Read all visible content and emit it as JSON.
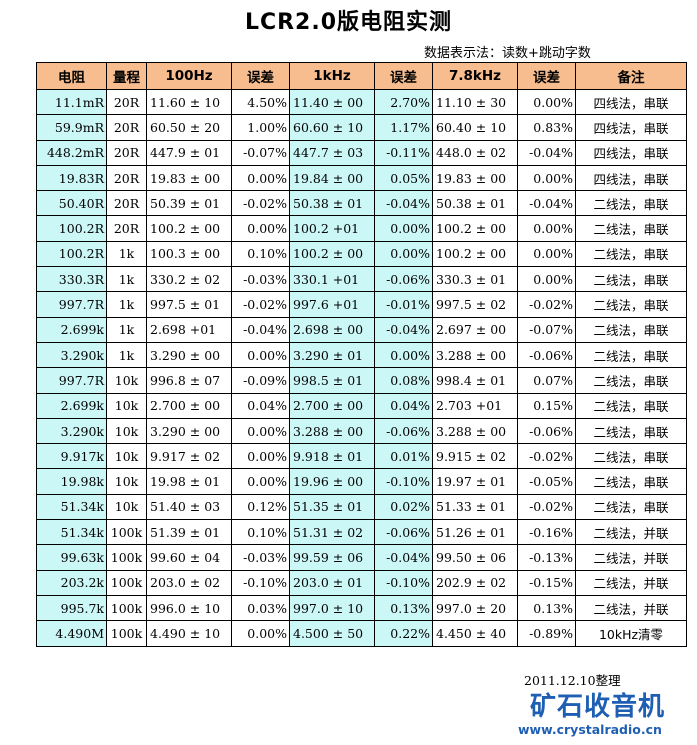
{
  "title": "LCR2.0版电阻实测",
  "subtitle": "数据表示法：读数+跳动字数",
  "headers": [
    "电阻",
    "量程",
    "100Hz",
    "误差",
    "1kHz",
    "误差",
    "7.8kHz",
    "误差",
    "备注"
  ],
  "rows": [
    [
      "11.1mR",
      "20R",
      "11.60 ± 10",
      "4.50%",
      "11.40 ± 00",
      "2.70%",
      "11.10 ± 30",
      "0.00%",
      "四线法，串联"
    ],
    [
      "59.9mR",
      "20R",
      "60.50 ± 20",
      "1.00%",
      "60.60 ± 10",
      "1.17%",
      "60.40 ± 10",
      "0.83%",
      "四线法，串联"
    ],
    [
      "448.2mR",
      "20R",
      "447.9 ± 01",
      "-0.07%",
      "447.7 ± 03",
      "-0.11%",
      "448.0 ± 02",
      "-0.04%",
      "四线法，串联"
    ],
    [
      "19.83R",
      "20R",
      "19.83 ± 00",
      "0.00%",
      "19.84 ± 00",
      "0.05%",
      "19.83 ± 00",
      "0.00%",
      "四线法，串联"
    ],
    [
      "50.40R",
      "20R",
      "50.39 ± 01",
      "-0.02%",
      "50.38 ± 01",
      "-0.04%",
      "50.38 ± 01",
      "-0.04%",
      "二线法，串联"
    ],
    [
      "100.2R",
      "20R",
      "100.2 ± 00",
      "0.00%",
      "100.2 +01",
      "0.00%",
      "100.2 ± 00",
      "0.00%",
      "二线法，串联"
    ],
    [
      "100.2R",
      "1k",
      "100.3 ± 00",
      "0.10%",
      "100.2 ± 00",
      "0.00%",
      "100.2 ± 00",
      "0.00%",
      "二线法，串联"
    ],
    [
      "330.3R",
      "1k",
      "330.2 ± 02",
      "-0.03%",
      "330.1 +01",
      "-0.06%",
      "330.3 ± 01",
      "0.00%",
      "二线法，串联"
    ],
    [
      "997.7R",
      "1k",
      "997.5 ± 01",
      "-0.02%",
      "997.6 +01",
      "-0.01%",
      "997.5 ± 02",
      "-0.02%",
      "二线法，串联"
    ],
    [
      "2.699k",
      "1k",
      "2.698 +01",
      "-0.04%",
      "2.698 ± 00",
      "-0.04%",
      "2.697 ± 00",
      "-0.07%",
      "二线法，串联"
    ],
    [
      "3.290k",
      "1k",
      "3.290 ± 00",
      "0.00%",
      "3.290 ± 01",
      "0.00%",
      "3.288 ± 00",
      "-0.06%",
      "二线法，串联"
    ],
    [
      "997.7R",
      "10k",
      "996.8 ± 07",
      "-0.09%",
      "998.5 ± 01",
      "0.08%",
      "998.4 ± 01",
      "0.07%",
      "二线法，串联"
    ],
    [
      "2.699k",
      "10k",
      "2.700 ± 00",
      "0.04%",
      "2.700 ± 00",
      "0.04%",
      "2.703 +01",
      "0.15%",
      "二线法，串联"
    ],
    [
      "3.290k",
      "10k",
      "3.290 ± 00",
      "0.00%",
      "3.288 ± 00",
      "-0.06%",
      "3.288 ± 00",
      "-0.06%",
      "二线法，串联"
    ],
    [
      "9.917k",
      "10k",
      "9.917 ± 02",
      "0.00%",
      "9.918 ± 01",
      "0.01%",
      "9.915 ± 02",
      "-0.02%",
      "二线法，串联"
    ],
    [
      "19.98k",
      "10k",
      "19.98 ± 01",
      "0.00%",
      "19.96 ± 00",
      "-0.10%",
      "19.97 ± 01",
      "-0.05%",
      "二线法，串联"
    ],
    [
      "51.34k",
      "10k",
      "51.40 ± 03",
      "0.12%",
      "51.35 ± 01",
      "0.02%",
      "51.33 ± 01",
      "-0.02%",
      "二线法，串联"
    ],
    [
      "51.34k",
      "100k",
      "51.39 ± 01",
      "0.10%",
      "51.31 ± 02",
      "-0.06%",
      "51.26 ± 01",
      "-0.16%",
      "二线法，并联"
    ],
    [
      "99.63k",
      "100k",
      "99.60 ± 04",
      "-0.03%",
      "99.59 ± 06",
      "-0.04%",
      "99.50 ± 06",
      "-0.13%",
      "二线法，并联"
    ],
    [
      "203.2k",
      "100k",
      "203.0 ± 02",
      "-0.10%",
      "203.0 ± 01",
      "-0.10%",
      "202.9 ± 02",
      "-0.15%",
      "二线法，并联"
    ],
    [
      "995.7k",
      "100k",
      "996.0 ± 10",
      "0.03%",
      "997.0 ± 10",
      "0.13%",
      "997.0 ± 20",
      "0.13%",
      "二线法，并联"
    ],
    [
      "4.490M",
      "100k",
      "4.490 ± 10",
      "0.00%",
      "4.500 ± 50",
      "0.22%",
      "4.450 ± 40",
      "-0.89%",
      "10kHz清零"
    ]
  ],
  "footer": {
    "date": "2011.12.10整理",
    "logo": "矿石收音机",
    "url": "www.crystalradio.cn"
  },
  "colors": {
    "header_bg": "#f7bd8f",
    "highlight_bg": "#ccf7f7",
    "logo_blue": "#1f5fb3"
  }
}
